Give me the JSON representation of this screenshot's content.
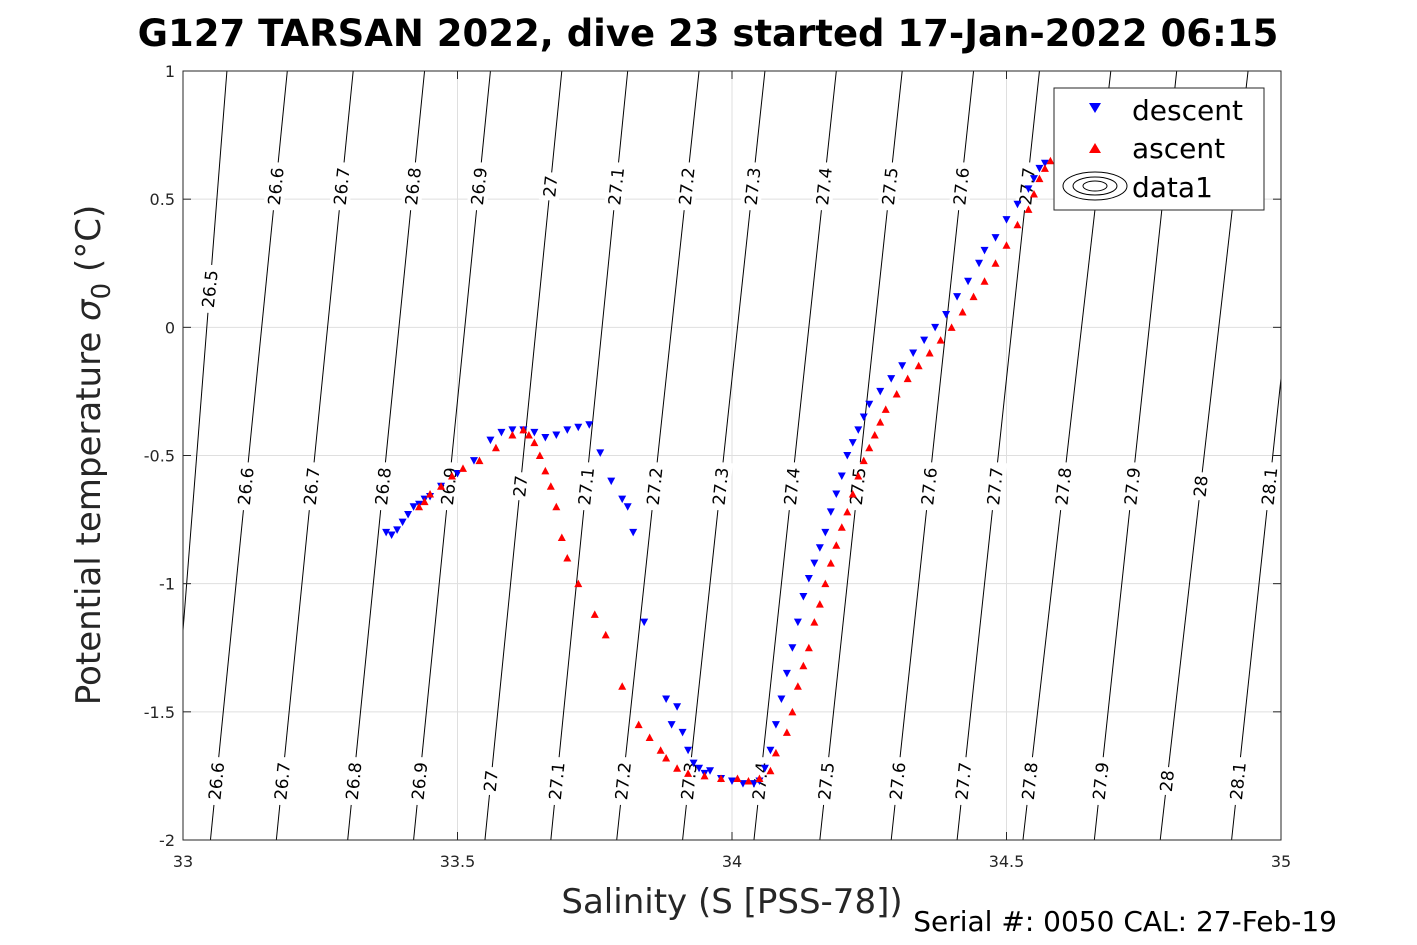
{
  "chart_data": {
    "type": "scatter",
    "title": "G127 TARSAN 2022, dive 23 started 17-Jan-2022 06:15",
    "xlabel": "Salinity (S [PSS-78])",
    "ylabel_main": "Potential temperature ",
    "ylabel_symbol": "σ",
    "ylabel_subscript": "0",
    "ylabel_unit": " (°C)",
    "footer": "Serial #: 0050  CAL: 27-Feb-19",
    "xlim": [
      33,
      35
    ],
    "ylim": [
      -2,
      1
    ],
    "x_ticks": [
      {
        "value": 33,
        "label": "33"
      },
      {
        "value": 33.5,
        "label": "33.5"
      },
      {
        "value": 34,
        "label": "34"
      },
      {
        "value": 34.5,
        "label": "34.5"
      },
      {
        "value": 35,
        "label": "35"
      }
    ],
    "y_ticks": [
      {
        "value": 1,
        "label": "1"
      },
      {
        "value": 0.5,
        "label": "0.5"
      },
      {
        "value": 0,
        "label": "0"
      },
      {
        "value": -0.5,
        "label": "-0.5"
      },
      {
        "value": -1,
        "label": "-1"
      },
      {
        "value": -1.5,
        "label": "-1.5"
      },
      {
        "value": -2,
        "label": "-2"
      }
    ],
    "grid": true,
    "legend": {
      "placement": "top-right",
      "entries": [
        {
          "label": "descent",
          "marker": "triangle-down",
          "color": "#0000ff"
        },
        {
          "label": "ascent",
          "marker": "triangle-up",
          "color": "#ff0000"
        },
        {
          "label": "data1",
          "marker": "contour",
          "color": "#000000"
        }
      ]
    },
    "density_contours": [
      {
        "label": "26.5",
        "s_at_top": 33.08,
        "s_at_bottom": 32.97
      },
      {
        "label": "26.6",
        "s_at_top": 33.19,
        "s_at_bottom": 33.05
      },
      {
        "label": "26.7",
        "s_at_top": 33.31,
        "s_at_bottom": 33.17
      },
      {
        "label": "26.8",
        "s_at_top": 33.44,
        "s_at_bottom": 33.3
      },
      {
        "label": "26.9",
        "s_at_top": 33.56,
        "s_at_bottom": 33.42
      },
      {
        "label": "27",
        "s_at_top": 33.69,
        "s_at_bottom": 33.55
      },
      {
        "label": "27.1",
        "s_at_top": 33.81,
        "s_at_bottom": 33.67
      },
      {
        "label": "27.2",
        "s_at_top": 33.94,
        "s_at_bottom": 33.79
      },
      {
        "label": "27.3",
        "s_at_top": 34.06,
        "s_at_bottom": 33.91
      },
      {
        "label": "27.4",
        "s_at_top": 34.19,
        "s_at_bottom": 34.04
      },
      {
        "label": "27.5",
        "s_at_top": 34.31,
        "s_at_bottom": 34.16
      },
      {
        "label": "27.6",
        "s_at_top": 34.44,
        "s_at_bottom": 34.29
      },
      {
        "label": "27.7",
        "s_at_top": 34.56,
        "s_at_bottom": 34.41
      },
      {
        "label": "27.8",
        "s_at_top": 34.69,
        "s_at_bottom": 34.53
      },
      {
        "label": "27.9",
        "s_at_top": 34.81,
        "s_at_bottom": 34.66
      },
      {
        "label": "28",
        "s_at_top": 34.94,
        "s_at_bottom": 34.78
      },
      {
        "label": "28.1",
        "s_at_top": 35.06,
        "s_at_bottom": 34.91
      }
    ],
    "contour_label_rows": [
      {
        "t": 0.55,
        "labels": [
          "26.6",
          "26.7",
          "26.8",
          "26.9",
          "27",
          "27.1",
          "27.2",
          "27.3",
          "27.4",
          "27.5",
          "27.6",
          "27.7"
        ]
      },
      {
        "t": -0.62,
        "labels": [
          "26.6",
          "26.7",
          "26.8",
          "26.9",
          "27",
          "27.1",
          "27.2",
          "27.3",
          "27.4",
          "27.5",
          "27.6",
          "27.7",
          "27.8",
          "27.9",
          "28",
          "28.1"
        ]
      },
      {
        "t": -1.77,
        "labels": [
          "26.6",
          "26.7",
          "26.8",
          "26.9",
          "27",
          "27.1",
          "27.2",
          "27.3",
          "27.4",
          "27.5",
          "27.6",
          "27.7",
          "27.8",
          "27.9",
          "28",
          "28.1"
        ]
      },
      {
        "t": 0.15,
        "labels": [
          "26.5"
        ]
      }
    ],
    "series": [
      {
        "name": "descent",
        "marker": "triangle-down",
        "color": "#0000ff",
        "points": [
          [
            33.37,
            -0.8
          ],
          [
            33.38,
            -0.81
          ],
          [
            33.39,
            -0.79
          ],
          [
            33.4,
            -0.76
          ],
          [
            33.41,
            -0.73
          ],
          [
            33.42,
            -0.7
          ],
          [
            33.43,
            -0.69
          ],
          [
            33.44,
            -0.67
          ],
          [
            33.45,
            -0.66
          ],
          [
            33.47,
            -0.62
          ],
          [
            33.5,
            -0.57
          ],
          [
            33.53,
            -0.52
          ],
          [
            33.56,
            -0.44
          ],
          [
            33.58,
            -0.41
          ],
          [
            33.6,
            -0.4
          ],
          [
            33.62,
            -0.4
          ],
          [
            33.64,
            -0.41
          ],
          [
            33.66,
            -0.43
          ],
          [
            33.68,
            -0.42
          ],
          [
            33.7,
            -0.4
          ],
          [
            33.72,
            -0.39
          ],
          [
            33.74,
            -0.38
          ],
          [
            33.76,
            -0.49
          ],
          [
            33.78,
            -0.6
          ],
          [
            33.8,
            -0.67
          ],
          [
            33.81,
            -0.7
          ],
          [
            33.82,
            -0.8
          ],
          [
            33.84,
            -1.15
          ],
          [
            33.88,
            -1.45
          ],
          [
            33.89,
            -1.55
          ],
          [
            33.9,
            -1.48
          ],
          [
            33.91,
            -1.58
          ],
          [
            33.92,
            -1.65
          ],
          [
            33.93,
            -1.7
          ],
          [
            33.94,
            -1.72
          ],
          [
            33.95,
            -1.74
          ],
          [
            33.96,
            -1.73
          ],
          [
            33.98,
            -1.76
          ],
          [
            34.0,
            -1.77
          ],
          [
            34.02,
            -1.78
          ],
          [
            34.04,
            -1.78
          ],
          [
            34.05,
            -1.77
          ],
          [
            34.06,
            -1.72
          ],
          [
            34.07,
            -1.65
          ],
          [
            34.08,
            -1.55
          ],
          [
            34.09,
            -1.45
          ],
          [
            34.1,
            -1.35
          ],
          [
            34.11,
            -1.25
          ],
          [
            34.12,
            -1.15
          ],
          [
            34.13,
            -1.05
          ],
          [
            34.14,
            -0.98
          ],
          [
            34.15,
            -0.92
          ],
          [
            34.16,
            -0.86
          ],
          [
            34.17,
            -0.8
          ],
          [
            34.18,
            -0.72
          ],
          [
            34.19,
            -0.65
          ],
          [
            34.2,
            -0.58
          ],
          [
            34.21,
            -0.5
          ],
          [
            34.22,
            -0.45
          ],
          [
            34.23,
            -0.4
          ],
          [
            34.24,
            -0.35
          ],
          [
            34.25,
            -0.3
          ],
          [
            34.27,
            -0.25
          ],
          [
            34.29,
            -0.2
          ],
          [
            34.31,
            -0.15
          ],
          [
            34.33,
            -0.1
          ],
          [
            34.35,
            -0.05
          ],
          [
            34.37,
            0.0
          ],
          [
            34.39,
            0.05
          ],
          [
            34.41,
            0.12
          ],
          [
            34.43,
            0.18
          ],
          [
            34.45,
            0.25
          ],
          [
            34.46,
            0.3
          ],
          [
            34.48,
            0.35
          ],
          [
            34.5,
            0.42
          ],
          [
            34.52,
            0.48
          ],
          [
            34.54,
            0.54
          ],
          [
            34.55,
            0.58
          ],
          [
            34.56,
            0.62
          ],
          [
            34.57,
            0.64
          ]
        ]
      },
      {
        "name": "ascent",
        "marker": "triangle-up",
        "color": "#ff0000",
        "points": [
          [
            33.43,
            -0.7
          ],
          [
            33.44,
            -0.68
          ],
          [
            33.45,
            -0.65
          ],
          [
            33.47,
            -0.62
          ],
          [
            33.49,
            -0.58
          ],
          [
            33.51,
            -0.55
          ],
          [
            33.54,
            -0.52
          ],
          [
            33.57,
            -0.47
          ],
          [
            33.6,
            -0.42
          ],
          [
            33.62,
            -0.4
          ],
          [
            33.63,
            -0.42
          ],
          [
            33.64,
            -0.45
          ],
          [
            33.65,
            -0.5
          ],
          [
            33.66,
            -0.56
          ],
          [
            33.67,
            -0.62
          ],
          [
            33.68,
            -0.7
          ],
          [
            33.69,
            -0.82
          ],
          [
            33.7,
            -0.9
          ],
          [
            33.72,
            -1.0
          ],
          [
            33.75,
            -1.12
          ],
          [
            33.77,
            -1.2
          ],
          [
            33.8,
            -1.4
          ],
          [
            33.83,
            -1.55
          ],
          [
            33.85,
            -1.6
          ],
          [
            33.87,
            -1.65
          ],
          [
            33.88,
            -1.68
          ],
          [
            33.9,
            -1.72
          ],
          [
            33.92,
            -1.74
          ],
          [
            33.95,
            -1.75
          ],
          [
            33.98,
            -1.76
          ],
          [
            34.01,
            -1.76
          ],
          [
            34.03,
            -1.77
          ],
          [
            34.05,
            -1.76
          ],
          [
            34.07,
            -1.73
          ],
          [
            34.08,
            -1.66
          ],
          [
            34.1,
            -1.58
          ],
          [
            34.11,
            -1.5
          ],
          [
            34.12,
            -1.4
          ],
          [
            34.13,
            -1.32
          ],
          [
            34.14,
            -1.25
          ],
          [
            34.15,
            -1.15
          ],
          [
            34.16,
            -1.08
          ],
          [
            34.17,
            -1.0
          ],
          [
            34.18,
            -0.92
          ],
          [
            34.19,
            -0.85
          ],
          [
            34.2,
            -0.78
          ],
          [
            34.21,
            -0.72
          ],
          [
            34.22,
            -0.65
          ],
          [
            34.23,
            -0.58
          ],
          [
            34.24,
            -0.52
          ],
          [
            34.25,
            -0.47
          ],
          [
            34.26,
            -0.42
          ],
          [
            34.27,
            -0.37
          ],
          [
            34.28,
            -0.32
          ],
          [
            34.3,
            -0.26
          ],
          [
            34.32,
            -0.2
          ],
          [
            34.34,
            -0.15
          ],
          [
            34.36,
            -0.1
          ],
          [
            34.38,
            -0.05
          ],
          [
            34.4,
            0.0
          ],
          [
            34.42,
            0.06
          ],
          [
            34.44,
            0.12
          ],
          [
            34.46,
            0.18
          ],
          [
            34.48,
            0.25
          ],
          [
            34.5,
            0.32
          ],
          [
            34.52,
            0.4
          ],
          [
            34.54,
            0.46
          ],
          [
            34.55,
            0.52
          ],
          [
            34.56,
            0.58
          ],
          [
            34.57,
            0.62
          ],
          [
            34.58,
            0.65
          ]
        ]
      }
    ]
  }
}
